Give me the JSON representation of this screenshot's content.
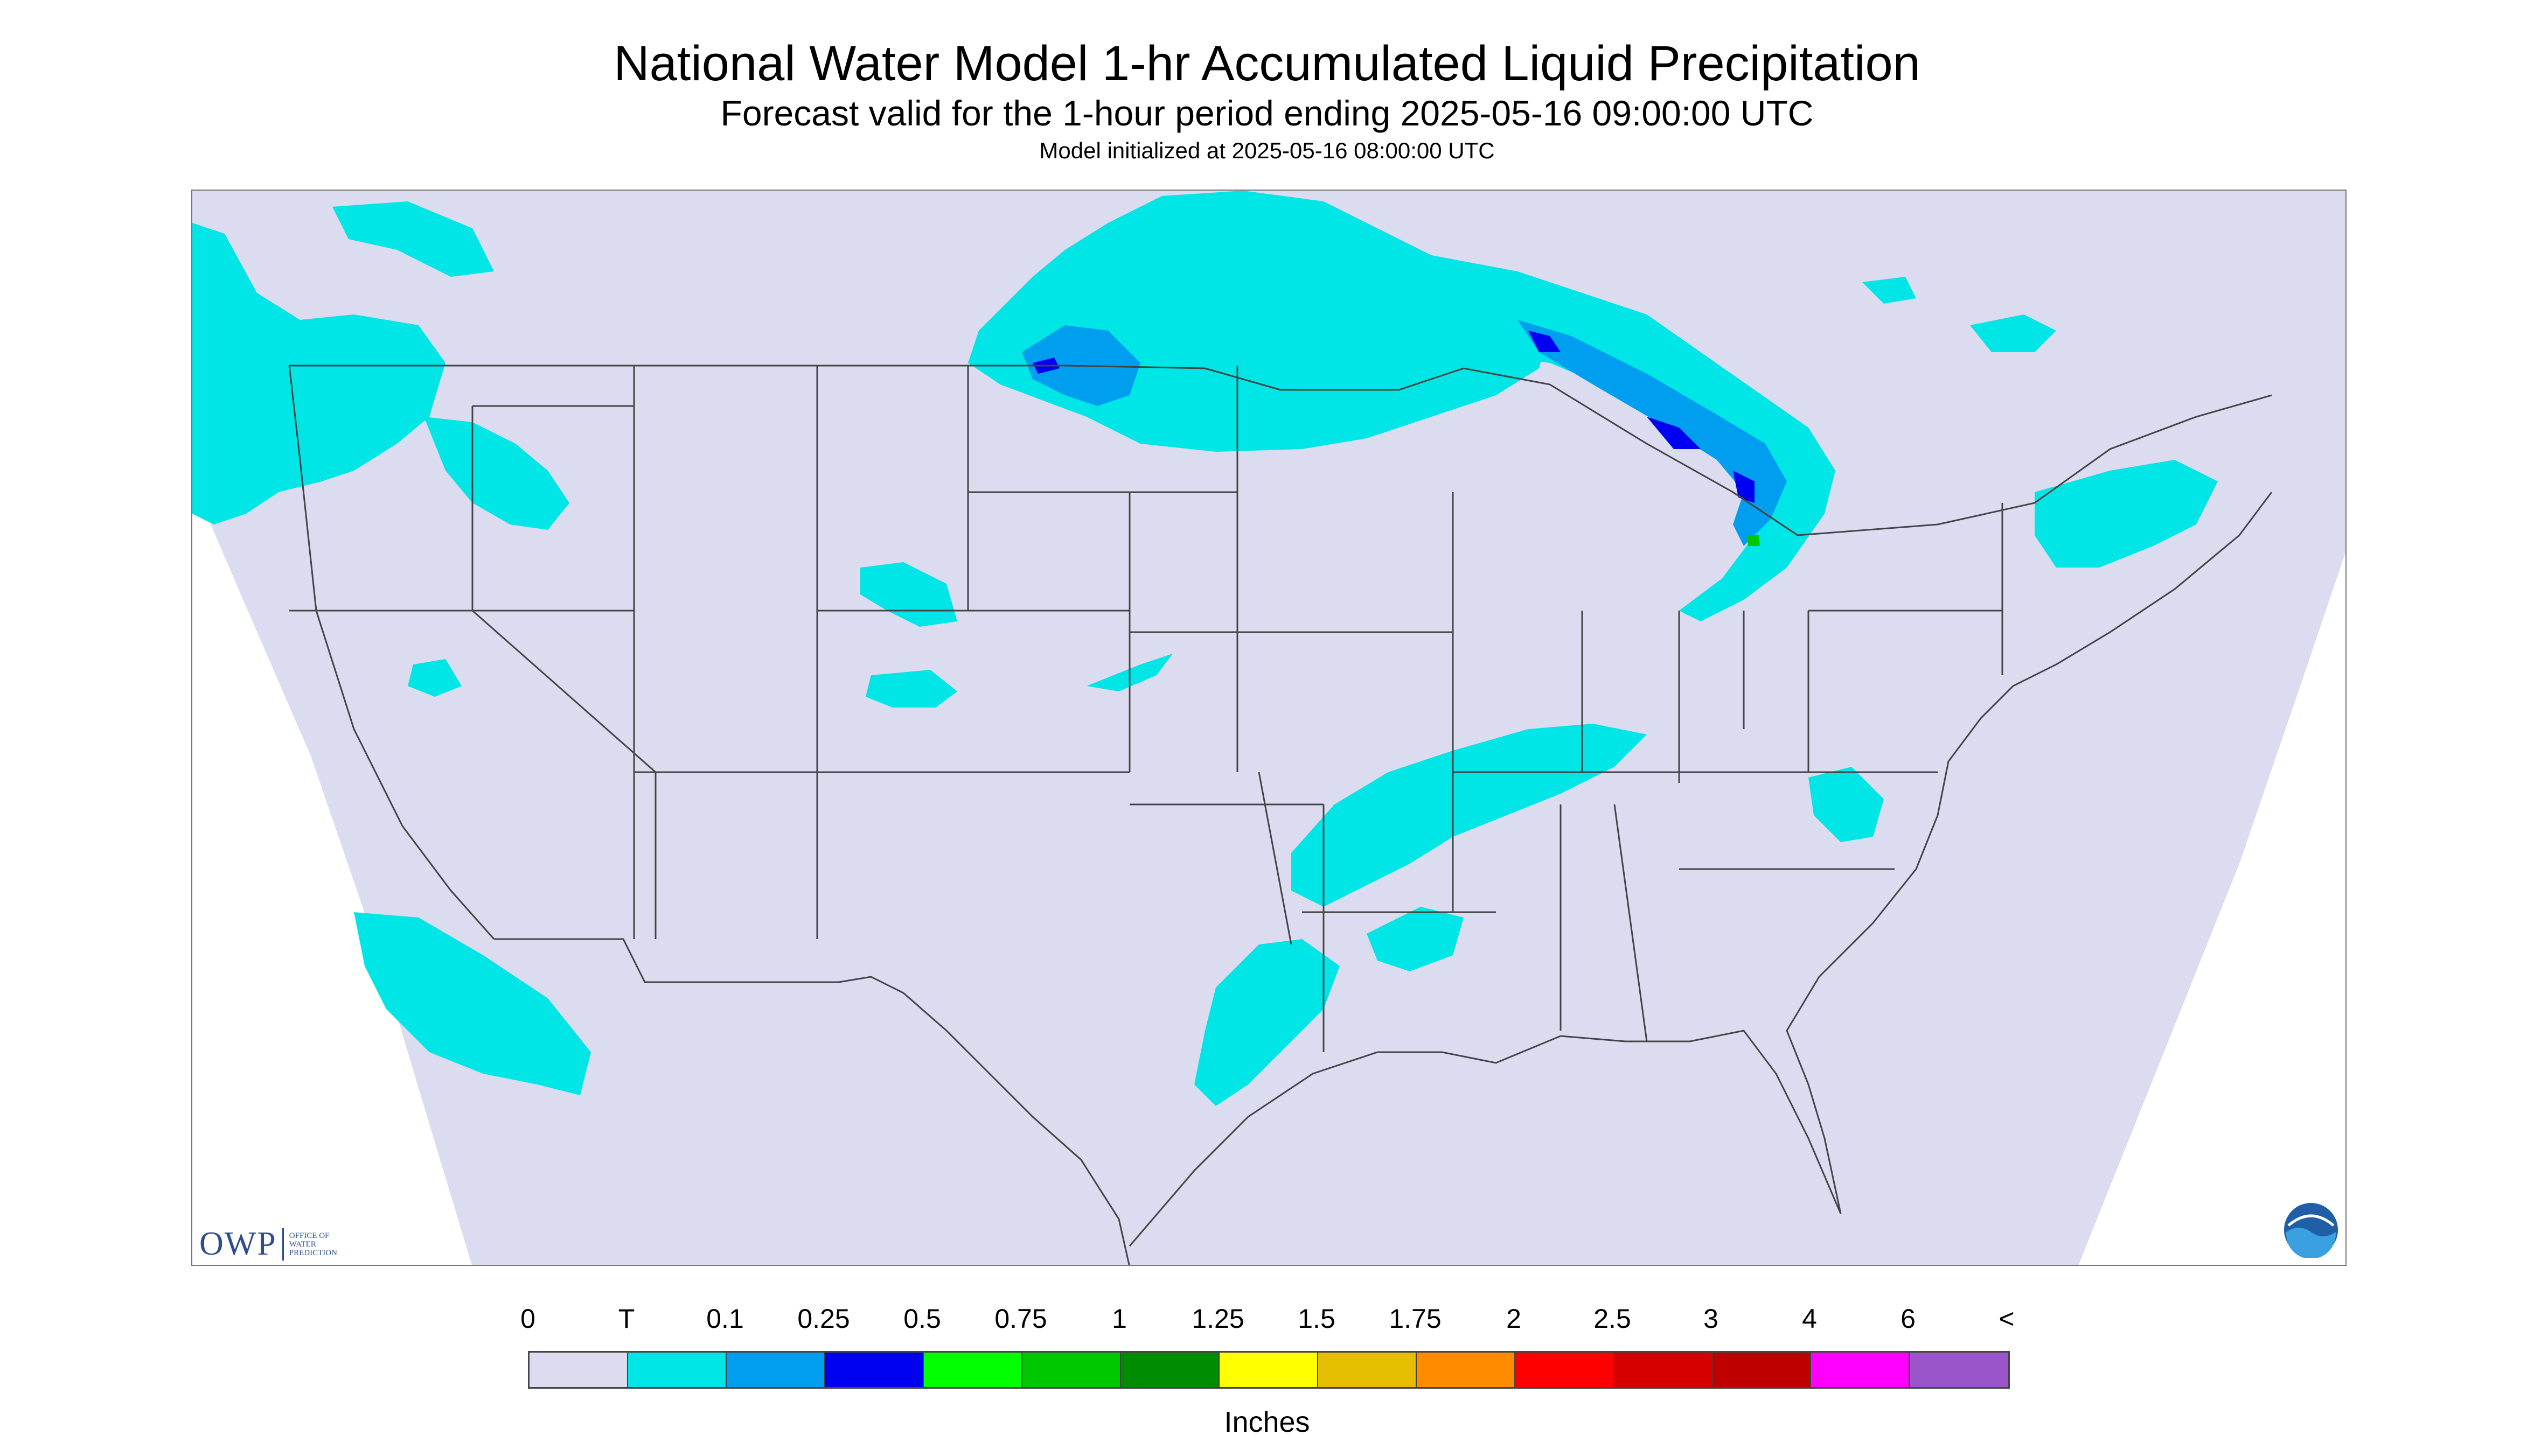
{
  "header": {
    "title": "National Water Model 1-hr Accumulated Liquid Precipitation",
    "subtitle": "Forecast valid for the 1-hour period ending 2025-05-16 09:00:00 UTC",
    "init": "Model initialized at 2025-05-16 08:00:00 UTC"
  },
  "logos": {
    "owp": "OWP",
    "owp_small": [
      "OFFICE OF",
      "WATER",
      "PREDICTION"
    ],
    "noaa": "NOAA"
  },
  "legend": {
    "labels": [
      "0",
      "T",
      "0.1",
      "0.25",
      "0.5",
      "0.75",
      "1",
      "1.25",
      "1.5",
      "1.75",
      "2",
      "2.5",
      "3",
      "4",
      "6",
      "<"
    ],
    "colors": [
      "#dcdcf0",
      "#00e5e5",
      "#009eef",
      "#0000f0",
      "#00ff00",
      "#00c800",
      "#008c00",
      "#ffff00",
      "#e6be00",
      "#ff8c00",
      "#ff0000",
      "#d70000",
      "#be0000",
      "#ff00ff",
      "#9955c9"
    ],
    "units": "Inches"
  },
  "map": {
    "domain_color": "#dcdcf0",
    "background_color": "#ffffff",
    "trace_color": "#00e5e5",
    "light_color": "#009eef",
    "heavy_color": "#0000f0",
    "peak_color": "#00c800",
    "boundary_color": "#444444"
  }
}
